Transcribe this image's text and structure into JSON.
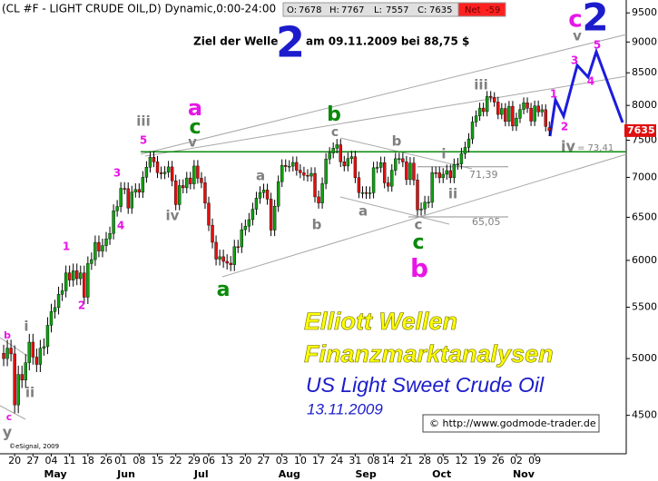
{
  "chart_data": {
    "type": "candlestick",
    "title": "(CL #F - LIGHT CRUDE OIL,D) Dynamic,0:00-24:00",
    "quote": {
      "labels": [
        "O:",
        "H:",
        "L:",
        "C:"
      ],
      "values": [
        7678,
        7767,
        7557,
        7635
      ],
      "net_label": "Net",
      "net": -59
    },
    "open": [
      5050,
      5000,
      5098,
      5044,
      4588,
      4855,
      4804,
      4962,
      5155,
      5014,
      4946,
      5097,
      5112,
      5319,
      5456,
      5497,
      5634,
      5671,
      5863,
      5785,
      5885,
      5800,
      5862,
      5603,
      5965,
      6009,
      6204,
      6105,
      6167,
      6245,
      6308,
      6578,
      6631,
      6858,
      6855,
      6612,
      6812,
      6844,
      6809,
      7001,
      7133,
      7268,
      7204,
      7062,
      7047,
      7067,
      7137,
      6955,
      6655,
      6894,
      6866,
      6992,
      6916,
      7149,
      6989,
      6931,
      6673,
      6405,
      6205,
      6014,
      6041,
      5989,
      5969,
      5952,
      6154,
      6152,
      6352,
      6393,
      6472,
      6598,
      6735,
      6805,
      6838,
      6723,
      6347,
      6635,
      6945,
      7158,
      7142,
      7147,
      7197,
      7093,
      7060,
      7027,
      7016,
      7052,
      6751,
      6675,
      6919,
      7243,
      7323,
      7389,
      7437,
      7205,
      7149,
      7249,
      7274,
      6996,
      6805,
      6805,
      6796,
      6802,
      7126,
      7131,
      7194,
      6929,
      6886,
      7093,
      7247,
      7247,
      7204,
      6971,
      7188,
      6966,
      6589,
      6602,
      6684,
      6684,
      7061,
      7060,
      6995,
      7041,
      7088,
      6995,
      7169,
      7177,
      7315,
      7400,
      7518,
      7758,
      7846,
      7961,
      7909,
      8137,
      8119,
      8050,
      7868,
      7955,
      7766,
      7987,
      7700,
      7813,
      7940,
      8040,
      7959,
      7770,
      7993,
      7905,
      7937,
      7678
    ],
    "high": [
      5130,
      5178,
      5178,
      5124,
      4935,
      4935,
      5042,
      5235,
      5235,
      5094,
      5177,
      5192,
      5399,
      5536,
      5577,
      5714,
      5751,
      5943,
      5943,
      5965,
      5965,
      5942,
      5942,
      6045,
      6089,
      6284,
      6284,
      6247,
      6325,
      6388,
      6658,
      6711,
      6938,
      6938,
      6935,
      6892,
      6924,
      6924,
      7081,
      7213,
      7348,
      7348,
      7284,
      7142,
      7147,
      7217,
      7217,
      7035,
      6974,
      6974,
      7072,
      7072,
      7229,
      7229,
      7069,
      7011,
      6753,
      6485,
      6285,
      6121,
      6121,
      6069,
      6049,
      6234,
      6234,
      6432,
      6473,
      6552,
      6678,
      6815,
      6885,
      6918,
      6918,
      6803,
      6715,
      7025,
      7238,
      7238,
      7227,
      7277,
      7277,
      7173,
      7140,
      7107,
      7132,
      7132,
      6831,
      6999,
      7323,
      7403,
      7469,
      7517,
      7517,
      7285,
      7329,
      7354,
      7354,
      7076,
      6885,
      6885,
      6882,
      7206,
      7211,
      7274,
      7274,
      7009,
      7173,
      7327,
      7327,
      7327,
      7284,
      7268,
      7268,
      7046,
      6682,
      6764,
      6764,
      7141,
      7141,
      7140,
      7121,
      7168,
      7168,
      7249,
      7257,
      7395,
      7480,
      7598,
      7838,
      7926,
      8041,
      8041,
      8217,
      8217,
      8199,
      8130,
      8035,
      8035,
      8067,
      8067,
      7893,
      8020,
      8120,
      8120,
      8039,
      8073,
      8073,
      8017,
      8017,
      7767
    ],
    "low": [
      4930,
      4930,
      4974,
      4518,
      4518,
      4734,
      4734,
      4892,
      4944,
      4876,
      4876,
      5027,
      5042,
      5249,
      5386,
      5427,
      5564,
      5601,
      5715,
      5715,
      5730,
      5730,
      5533,
      5533,
      5895,
      5939,
      6035,
      6035,
      6097,
      6175,
      6238,
      6508,
      6561,
      6785,
      6542,
      6542,
      6742,
      6739,
      6739,
      6931,
      7063,
      7134,
      6992,
      6977,
      6977,
      6997,
      6885,
      6585,
      6585,
      6796,
      6796,
      6846,
      6846,
      6919,
      6861,
      6603,
      6335,
      6135,
      5944,
      5944,
      5919,
      5899,
      5882,
      5882,
      6082,
      6082,
      6282,
      6323,
      6402,
      6528,
      6665,
      6735,
      6653,
      6277,
      6277,
      6565,
      6875,
      7072,
      7072,
      7077,
      7023,
      6990,
      6957,
      6946,
      6946,
      6681,
      6605,
      6605,
      6849,
      7173,
      7253,
      7319,
      7135,
      7079,
      7079,
      7179,
      6926,
      6735,
      6735,
      6726,
      6726,
      6732,
      7056,
      7061,
      6859,
      6816,
      6816,
      7023,
      7177,
      7134,
      6901,
      6901,
      6896,
      6519,
      6519,
      6532,
      6614,
      6614,
      6990,
      6925,
      6925,
      6971,
      6925,
      6925,
      7099,
      7107,
      7245,
      7330,
      7448,
      7688,
      7776,
      7839,
      7839,
      8049,
      7980,
      7798,
      7798,
      7696,
      7696,
      7630,
      7630,
      7743,
      7870,
      7889,
      7700,
      7700,
      7835,
      7835,
      7624,
      7557
    ],
    "close": [
      5000,
      5098,
      5044,
      4588,
      4855,
      4804,
      4962,
      5155,
      5014,
      4946,
      5097,
      5112,
      5319,
      5456,
      5497,
      5634,
      5671,
      5863,
      5785,
      5885,
      5800,
      5862,
      5603,
      5965,
      6009,
      6204,
      6105,
      6167,
      6245,
      6308,
      6578,
      6631,
      6858,
      6855,
      6612,
      6812,
      6844,
      6809,
      7001,
      7133,
      7268,
      7204,
      7062,
      7047,
      7067,
      7137,
      6955,
      6655,
      6894,
      6866,
      6992,
      6916,
      7149,
      6989,
      6931,
      6673,
      6405,
      6205,
      6014,
      6041,
      5989,
      5969,
      5952,
      6154,
      6152,
      6352,
      6393,
      6472,
      6598,
      6735,
      6805,
      6838,
      6723,
      6347,
      6635,
      6945,
      7158,
      7142,
      7147,
      7197,
      7093,
      7060,
      7027,
      7016,
      7052,
      6751,
      6675,
      6919,
      7243,
      7323,
      7389,
      7437,
      7205,
      7149,
      7249,
      7274,
      6996,
      6805,
      6805,
      6796,
      6802,
      7126,
      7131,
      7194,
      6929,
      6886,
      7093,
      7247,
      7247,
      7204,
      6971,
      7188,
      6966,
      6589,
      6602,
      6684,
      6684,
      7061,
      7060,
      6995,
      7041,
      7088,
      6995,
      7169,
      7177,
      7315,
      7400,
      7518,
      7758,
      7846,
      7961,
      7909,
      8137,
      8119,
      8050,
      7868,
      7955,
      7766,
      7987,
      7700,
      7813,
      7940,
      8040,
      7959,
      7770,
      7993,
      7905,
      7937,
      7694,
      7635
    ],
    "up_color": "#10a010",
    "down_color": "#e01010",
    "xlim": [
      -1,
      170
    ],
    "xticks": [
      {
        "value": 3,
        "label": "20"
      },
      {
        "value": 8,
        "label": "27"
      },
      {
        "value": 13,
        "label": "04"
      },
      {
        "value": 18,
        "label": "11"
      },
      {
        "value": 23,
        "label": "18"
      },
      {
        "value": 28,
        "label": "26"
      },
      {
        "value": 32,
        "label": "01"
      },
      {
        "value": 37,
        "label": "08"
      },
      {
        "value": 42,
        "label": "15"
      },
      {
        "value": 47,
        "label": "22"
      },
      {
        "value": 52,
        "label": "29"
      },
      {
        "value": 56,
        "label": "06"
      },
      {
        "value": 61,
        "label": "13"
      },
      {
        "value": 66,
        "label": "20"
      },
      {
        "value": 71,
        "label": "27"
      },
      {
        "value": 76,
        "label": "03"
      },
      {
        "value": 81,
        "label": "10"
      },
      {
        "value": 86,
        "label": "17"
      },
      {
        "value": 91,
        "label": "24"
      },
      {
        "value": 96,
        "label": "31"
      },
      {
        "value": 101,
        "label": "08"
      },
      {
        "value": 105,
        "label": "14"
      },
      {
        "value": 110,
        "label": "21"
      },
      {
        "value": 115,
        "label": "28"
      },
      {
        "value": 120,
        "label": "05"
      },
      {
        "value": 125,
        "label": "12"
      },
      {
        "value": 130,
        "label": "19"
      },
      {
        "value": 135,
        "label": "26"
      },
      {
        "value": 140,
        "label": "02"
      },
      {
        "value": 145,
        "label": "09"
      }
    ],
    "months": [
      {
        "value": 12,
        "label": "May"
      },
      {
        "value": 32,
        "label": "Jun"
      },
      {
        "value": 53,
        "label": "Jul"
      },
      {
        "value": 76,
        "label": "Aug"
      },
      {
        "value": 97,
        "label": "Sep"
      },
      {
        "value": 118,
        "label": "Oct"
      },
      {
        "value": 140,
        "label": "Nov"
      }
    ],
    "ylim": [
      4190,
      9730
    ],
    "log_y": true,
    "yticks": [
      4500,
      5000,
      5500,
      6000,
      6500,
      7000,
      7500,
      8000,
      8500,
      9000,
      9500
    ],
    "levels": [
      {
        "value": 7341,
        "label": "= 73,41",
        "color": "#0a8a0a"
      },
      {
        "value": 7139,
        "label": "71,39",
        "color": "#909090"
      },
      {
        "value": 6505,
        "label": "65,05",
        "color": "#909090"
      }
    ],
    "wave_labels": [
      {
        "text": "b",
        "color": "#e815e8"
      },
      {
        "text": "i",
        "color": "#808080"
      },
      {
        "text": "ii",
        "color": "#808080"
      },
      {
        "text": "c",
        "color": "#e815e8"
      },
      {
        "text": "y",
        "color": "#808080"
      },
      {
        "text": "1",
        "color": "#e815e8"
      },
      {
        "text": "2",
        "color": "#e815e8"
      },
      {
        "text": "3",
        "color": "#e815e8"
      },
      {
        "text": "4",
        "color": "#e815e8"
      },
      {
        "text": "5",
        "color": "#e815e8"
      },
      {
        "text": "iii",
        "color": "#808080"
      },
      {
        "text": "iv",
        "color": "#808080"
      },
      {
        "text": "a",
        "color": "#e815e8"
      },
      {
        "text": "c",
        "color": "#0a8a0a"
      },
      {
        "text": "v",
        "color": "#808080"
      },
      {
        "text": "a",
        "color": "#0a8a0a"
      },
      {
        "text": "a",
        "color": "#808080"
      },
      {
        "text": "b",
        "color": "#808080"
      },
      {
        "text": "b",
        "color": "#0a8a0a"
      },
      {
        "text": "c",
        "color": "#808080"
      },
      {
        "text": "b",
        "color": "#808080"
      },
      {
        "text": "a",
        "color": "#808080"
      },
      {
        "text": "c",
        "color": "#808080"
      },
      {
        "text": "c",
        "color": "#0a8a0a"
      },
      {
        "text": "b",
        "color": "#e815e8"
      },
      {
        "text": "i",
        "color": "#808080"
      },
      {
        "text": "ii",
        "color": "#808080"
      },
      {
        "text": "iii",
        "color": "#808080"
      },
      {
        "text": "1",
        "color": "#e815e8"
      },
      {
        "text": "2",
        "color": "#e815e8"
      },
      {
        "text": "3",
        "color": "#e815e8"
      },
      {
        "text": "4",
        "color": "#e815e8"
      },
      {
        "text": "5",
        "color": "#e815e8"
      },
      {
        "text": "v",
        "color": "#808080"
      },
      {
        "text": "c",
        "color": "#e815e8"
      },
      {
        "text": "2",
        "color": "#1c1ccc"
      },
      {
        "text": "iv",
        "color": "#808080"
      }
    ],
    "target": {
      "prefix": "Ziel der Welle",
      "wave": "2",
      "suffix": "am 09.11.2009 bei 88,75 $"
    },
    "banner": [
      "Elliott Wellen",
      "Finanzmarktanalysen"
    ],
    "subtitle": "US Light Sweet Crude Oil",
    "date": "13.11.2009",
    "source": "© http://www.godmode-trader.de",
    "credit": "©eSignal, 2009"
  }
}
